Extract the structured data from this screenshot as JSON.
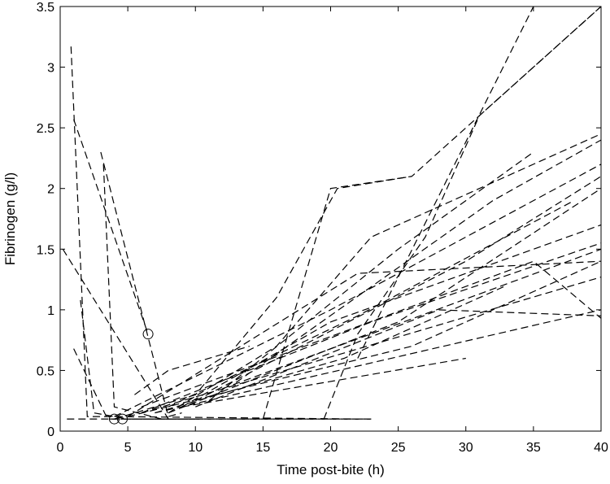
{
  "chart_data": {
    "type": "line",
    "title": "",
    "xlabel": "Time post-bite (h)",
    "ylabel": "Fibrinogen (g/l)",
    "xlim": [
      0,
      40
    ],
    "ylim": [
      0,
      3.5
    ],
    "xticks": [
      "0",
      "5",
      "10",
      "15",
      "20",
      "25",
      "30",
      "35",
      "40"
    ],
    "yticks": [
      "0",
      "0.5",
      "1",
      "1.5",
      "2",
      "2.5",
      "3",
      "3.5"
    ],
    "grid": false,
    "line_style": "dashed",
    "line_color": "#000000",
    "series": [
      {
        "x": [
          0.8,
          2.0,
          4.0,
          22.0
        ],
        "y": [
          3.17,
          0.12,
          0.12,
          0.1
        ]
      },
      {
        "x": [
          1.0,
          6.5
        ],
        "y": [
          2.57,
          0.8
        ]
      },
      {
        "x": [
          1.0,
          3.5,
          10.0
        ],
        "y": [
          0.68,
          0.1,
          0.1
        ]
      },
      {
        "x": [
          1.5,
          2.5,
          5.0,
          14.0,
          23.0
        ],
        "y": [
          1.08,
          0.15,
          0.1,
          0.1,
          0.1
        ]
      },
      {
        "x": [
          3.2,
          4.0,
          7.5
        ],
        "y": [
          2.2,
          0.2,
          0.1
        ]
      },
      {
        "x": [
          0.2,
          8.0
        ],
        "y": [
          1.5,
          0.1
        ]
      },
      {
        "x": [
          3.0,
          8.0,
          9.0
        ],
        "y": [
          2.3,
          0.12,
          0.15
        ]
      },
      {
        "x": [
          0.5,
          15.0,
          16.0,
          23.0
        ],
        "y": [
          0.1,
          0.1,
          0.1,
          0.1
        ]
      },
      {
        "x": [
          19.5,
          22.0,
          27.0,
          31.0,
          40.0
        ],
        "y": [
          0.1,
          0.8,
          1.6,
          2.6,
          3.5
        ]
      },
      {
        "x": [
          22.0,
          35.0
        ],
        "y": [
          0.6,
          3.5
        ]
      },
      {
        "x": [
          15.0,
          20.0,
          26.0,
          40.0
        ],
        "y": [
          0.1,
          2.0,
          2.1,
          3.5
        ]
      },
      {
        "x": [
          4.0,
          10.0,
          16.0,
          20.5,
          26.0
        ],
        "y": [
          0.1,
          0.3,
          1.1,
          2.0,
          2.1
        ]
      },
      {
        "x": [
          8.0,
          16.0,
          23.0,
          40.0
        ],
        "y": [
          0.15,
          0.7,
          1.6,
          2.45
        ]
      },
      {
        "x": [
          4.0,
          20.0,
          40.0
        ],
        "y": [
          0.12,
          1.0,
          2.2
        ]
      },
      {
        "x": [
          5.0,
          22.0,
          40.0
        ],
        "y": [
          0.12,
          1.3,
          1.4
        ]
      },
      {
        "x": [
          6.0,
          23.0,
          40.0
        ],
        "y": [
          0.15,
          0.9,
          1.55
        ]
      },
      {
        "x": [
          6.0,
          40.0
        ],
        "y": [
          0.15,
          1.27
        ]
      },
      {
        "x": [
          7.0,
          40.0
        ],
        "y": [
          0.15,
          1.0
        ]
      },
      {
        "x": [
          8.0,
          25.0,
          40.0
        ],
        "y": [
          0.15,
          0.9,
          2.0
        ]
      },
      {
        "x": [
          9.0,
          20.0,
          40.0
        ],
        "y": [
          0.2,
          0.9,
          1.7
        ]
      },
      {
        "x": [
          10.0,
          30.0,
          40.0
        ],
        "y": [
          0.25,
          1.4,
          2.1
        ]
      },
      {
        "x": [
          6.0,
          35.0,
          40.0
        ],
        "y": [
          0.2,
          1.4,
          0.93
        ]
      },
      {
        "x": [
          12.0,
          40.0
        ],
        "y": [
          0.35,
          1.5
        ]
      },
      {
        "x": [
          10.0,
          28.0,
          40.0
        ],
        "y": [
          0.2,
          1.0,
          0.95
        ]
      },
      {
        "x": [
          5.0,
          26.0,
          40.0
        ],
        "y": [
          0.12,
          0.7,
          1.4
        ]
      },
      {
        "x": [
          9.0,
          30.0
        ],
        "y": [
          0.2,
          0.6
        ]
      },
      {
        "x": [
          11.0,
          25.0,
          35.0
        ],
        "y": [
          0.25,
          1.5,
          2.3
        ]
      },
      {
        "x": [
          7.0,
          21.0,
          33.0
        ],
        "y": [
          0.15,
          0.6,
          1.2
        ]
      },
      {
        "x": [
          13.0,
          32.0,
          40.0
        ],
        "y": [
          0.4,
          1.9,
          2.4
        ]
      },
      {
        "x": [
          8.0,
          22.0,
          38.0
        ],
        "y": [
          0.2,
          0.95,
          1.9
        ]
      },
      {
        "x": [
          5.5,
          8.0,
          14.0
        ],
        "y": [
          0.3,
          0.5,
          0.7
        ]
      }
    ],
    "markers": [
      {
        "x": 4.0,
        "y": 0.1
      },
      {
        "x": 4.6,
        "y": 0.1
      },
      {
        "x": 6.5,
        "y": 0.8
      }
    ]
  }
}
